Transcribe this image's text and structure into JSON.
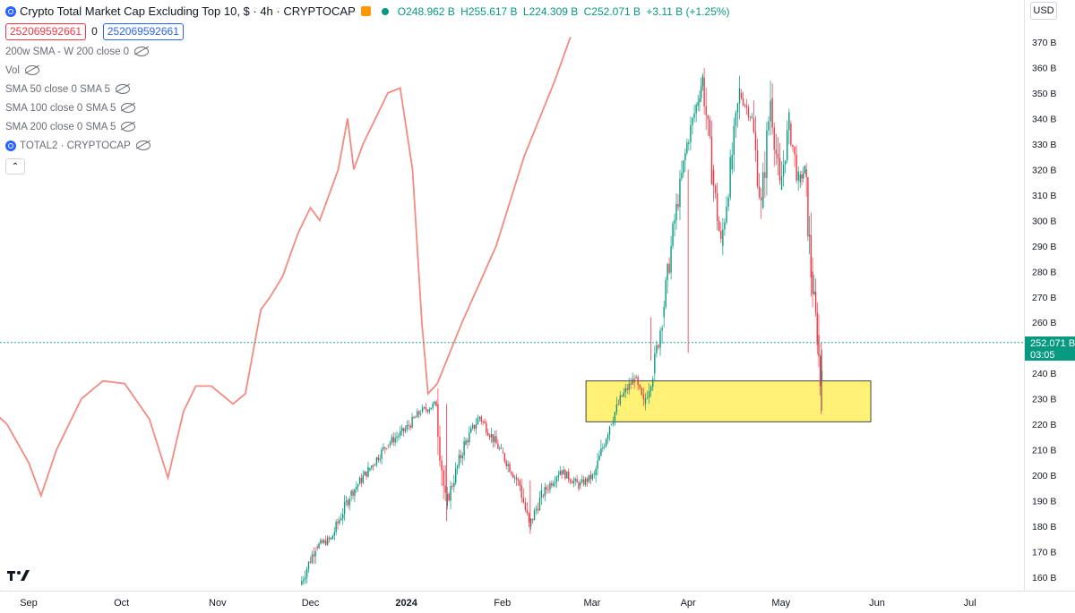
{
  "header": {
    "title": "Crypto Total Market Cap Excluding Top 10, $ · 4h · CRYPTOCAP",
    "open": "O248.962 B",
    "high": "H255.617 B",
    "low": "L224.309 B",
    "close": "C252.071 B",
    "change": "+3.11 B (+1.25%)",
    "sell_value": "252069592661",
    "spread": "0",
    "buy_value": "252069592661"
  },
  "indicators": [
    {
      "label": "200w SMA - W 200 close 0"
    },
    {
      "label": "Vol"
    },
    {
      "label": "SMA 50 close 0 SMA 5"
    },
    {
      "label": "SMA 100 close 0 SMA 5"
    },
    {
      "label": "SMA 200 close 0 SMA 5"
    },
    {
      "label": "TOTAL2 · CRYPTOCAP"
    }
  ],
  "currency": "USD",
  "price_label": {
    "value": "252.071 B",
    "countdown": "03:05"
  },
  "colors": {
    "up": "#089981",
    "down": "#f23645",
    "sma": "#f28b82",
    "zone_fill": "#fff176",
    "price_line": "#089981"
  },
  "chart_data": {
    "type": "candlestick",
    "yaxis": {
      "ticks": [
        "160 B",
        "170 B",
        "180 B",
        "190 B",
        "200 B",
        "210 B",
        "220 B",
        "230 B",
        "240 B",
        "250 B",
        "260 B",
        "270 B",
        "280 B",
        "290 B",
        "300 B",
        "310 B",
        "320 B",
        "330 B",
        "340 B",
        "350 B",
        "360 B",
        "370 B"
      ],
      "range": [
        155,
        375
      ]
    },
    "xaxis": {
      "ticks": [
        "Sep",
        "Oct",
        "Nov",
        "Dec",
        "2024",
        "Feb",
        "Mar",
        "Apr",
        "May",
        "Jun",
        "Jul"
      ]
    },
    "last_price": 252.071,
    "series": [
      {
        "type": "ohlc_path",
        "points": [
          [
            "2023-11-28",
            157
          ],
          [
            "2023-12-03",
            172
          ],
          [
            "2023-12-08",
            175
          ],
          [
            "2023-12-14",
            192
          ],
          [
            "2023-12-20",
            202
          ],
          [
            "2023-12-26",
            212
          ],
          [
            "2024-01-01",
            218
          ],
          [
            "2024-01-06",
            225
          ],
          [
            "2024-01-11",
            228
          ],
          [
            "2024-01-14",
            188
          ],
          [
            "2024-01-20",
            212
          ],
          [
            "2024-01-25",
            223
          ],
          [
            "2024-02-01",
            209
          ],
          [
            "2024-02-07",
            196
          ],
          [
            "2024-02-10",
            180
          ],
          [
            "2024-02-14",
            192
          ],
          [
            "2024-02-20",
            202
          ],
          [
            "2024-02-26",
            196
          ],
          [
            "2024-03-02",
            200
          ],
          [
            "2024-03-07",
            220
          ],
          [
            "2024-03-11",
            231
          ],
          [
            "2024-03-15",
            238
          ],
          [
            "2024-03-18",
            228
          ],
          [
            "2024-03-21",
            240
          ],
          [
            "2024-03-24",
            262
          ],
          [
            "2024-03-28",
            300
          ],
          [
            "2024-04-01",
            330
          ],
          [
            "2024-04-04",
            345
          ],
          [
            "2024-04-06",
            356
          ],
          [
            "2024-04-09",
            320
          ],
          [
            "2024-04-12",
            290
          ],
          [
            "2024-04-15",
            320
          ],
          [
            "2024-04-18",
            350
          ],
          [
            "2024-04-22",
            340
          ],
          [
            "2024-04-25",
            305
          ],
          [
            "2024-04-28",
            348
          ],
          [
            "2024-05-01",
            312
          ],
          [
            "2024-05-04",
            338
          ],
          [
            "2024-05-07",
            315
          ],
          [
            "2024-05-09",
            320
          ],
          [
            "2024-05-11",
            280
          ],
          [
            "2024-05-13",
            255
          ],
          [
            "2024-05-14",
            237
          ],
          [
            "2024-05-14",
            252
          ]
        ]
      },
      {
        "type": "line",
        "points": [
          [
            "2023-08-10",
            190
          ],
          [
            "2023-08-11",
            220
          ],
          [
            "2023-08-14",
            229
          ],
          [
            "2023-08-18",
            228
          ],
          [
            "2023-08-25",
            220
          ],
          [
            "2023-09-01",
            205
          ],
          [
            "2023-09-05",
            192
          ],
          [
            "2023-09-10",
            210
          ],
          [
            "2023-09-18",
            230
          ],
          [
            "2023-09-25",
            237
          ],
          [
            "2023-10-02",
            236
          ],
          [
            "2023-10-10",
            222
          ],
          [
            "2023-10-16",
            199
          ],
          [
            "2023-10-21",
            225
          ],
          [
            "2023-10-25",
            235
          ],
          [
            "2023-10-30",
            235
          ],
          [
            "2023-11-06",
            228
          ],
          [
            "2023-11-10",
            232
          ],
          [
            "2023-11-15",
            265
          ],
          [
            "2023-11-18",
            270
          ],
          [
            "2023-11-22",
            278
          ],
          [
            "2023-11-27",
            295
          ],
          [
            "2023-12-01",
            305
          ],
          [
            "2023-12-04",
            300
          ],
          [
            "2023-12-10",
            320
          ],
          [
            "2023-12-13",
            340
          ],
          [
            "2023-12-15",
            320
          ],
          [
            "2023-12-18",
            330
          ],
          [
            "2023-12-26",
            350
          ],
          [
            "2023-12-30",
            352
          ],
          [
            "2024-01-03",
            320
          ],
          [
            "2024-01-06",
            260
          ],
          [
            "2024-01-08",
            232
          ],
          [
            "2024-01-11",
            236
          ],
          [
            "2024-01-19",
            260
          ],
          [
            "2024-01-30",
            290
          ],
          [
            "2024-02-08",
            325
          ],
          [
            "2024-02-18",
            355
          ],
          [
            "2024-02-23",
            372
          ]
        ]
      }
    ],
    "annotations": [
      {
        "type": "rectangle",
        "y_range": [
          221,
          237
        ],
        "x_range": [
          "2024-02-28",
          "2024-05-30"
        ]
      }
    ]
  }
}
